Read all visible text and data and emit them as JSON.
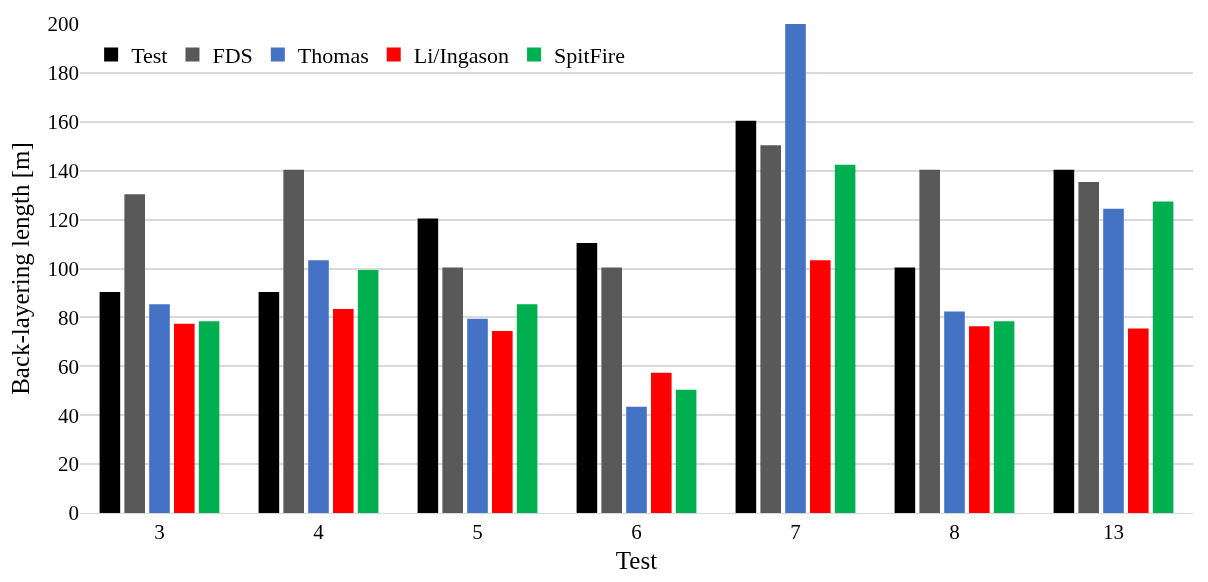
{
  "chart_data": {
    "type": "bar",
    "xlabel": "Test",
    "ylabel": "Back-layering length [m]",
    "categories": [
      "3",
      "4",
      "5",
      "6",
      "7",
      "8",
      "13"
    ],
    "series": [
      {
        "name": "Test",
        "color": "#000000",
        "values": [
          90,
          90,
          120,
          110,
          160,
          100,
          140
        ]
      },
      {
        "name": "FDS",
        "color": "#595959",
        "values": [
          130,
          140,
          100,
          100,
          150,
          140,
          135
        ]
      },
      {
        "name": "Thomas",
        "color": "#4472c4",
        "values": [
          85,
          103,
          79,
          43,
          200,
          82,
          124
        ]
      },
      {
        "name": "Li/Ingason",
        "color": "#ff0000",
        "values": [
          77,
          83,
          74,
          57,
          103,
          76,
          75
        ]
      },
      {
        "name": "SpitFire",
        "color": "#00b050",
        "values": [
          78,
          99,
          85,
          50,
          142,
          78,
          127
        ]
      }
    ],
    "ylim": [
      0,
      200
    ],
    "yticks": [
      0,
      20,
      40,
      60,
      80,
      100,
      120,
      140,
      160,
      180,
      200
    ],
    "grid": "y",
    "legend": "top left"
  }
}
